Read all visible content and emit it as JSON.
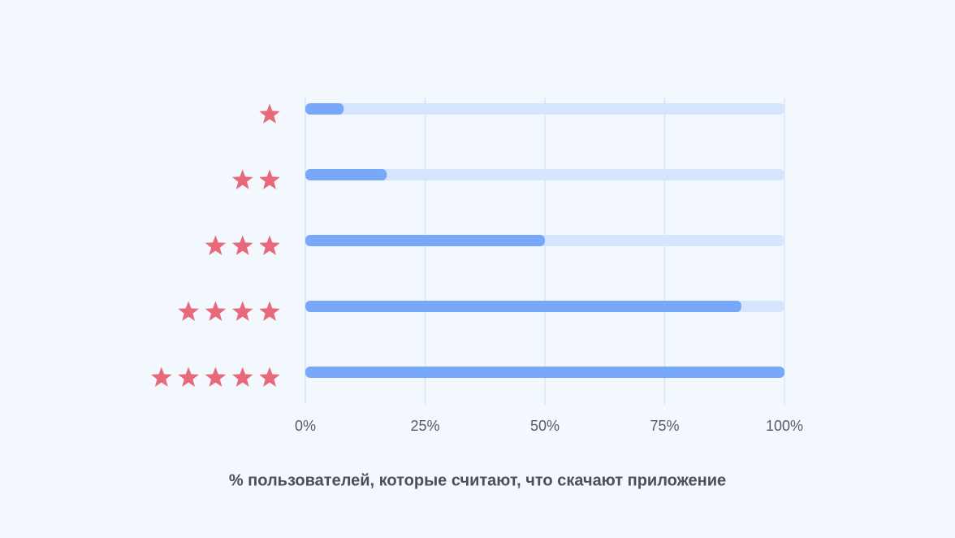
{
  "chart_data": {
    "type": "bar",
    "orientation": "horizontal",
    "x_label": "% пользователей, которые считают, что скачают приложение",
    "categories": [
      null,
      null,
      null,
      null,
      null
    ],
    "stars": [
      1,
      2,
      3,
      4,
      5
    ],
    "star_color": "#e8697a",
    "values": [
      8,
      17,
      50,
      91,
      100
    ],
    "color": "#78a8fa",
    "track_color": "#d6e4fd",
    "xlim": [
      0,
      100
    ],
    "xticks": [
      {
        "value": 0,
        "label": "0%"
      },
      {
        "value": 25,
        "label": "25%"
      },
      {
        "value": 50,
        "label": "50%"
      },
      {
        "value": 75,
        "label": "75%"
      },
      {
        "value": 100,
        "label": "100%"
      }
    ],
    "grid": true
  }
}
